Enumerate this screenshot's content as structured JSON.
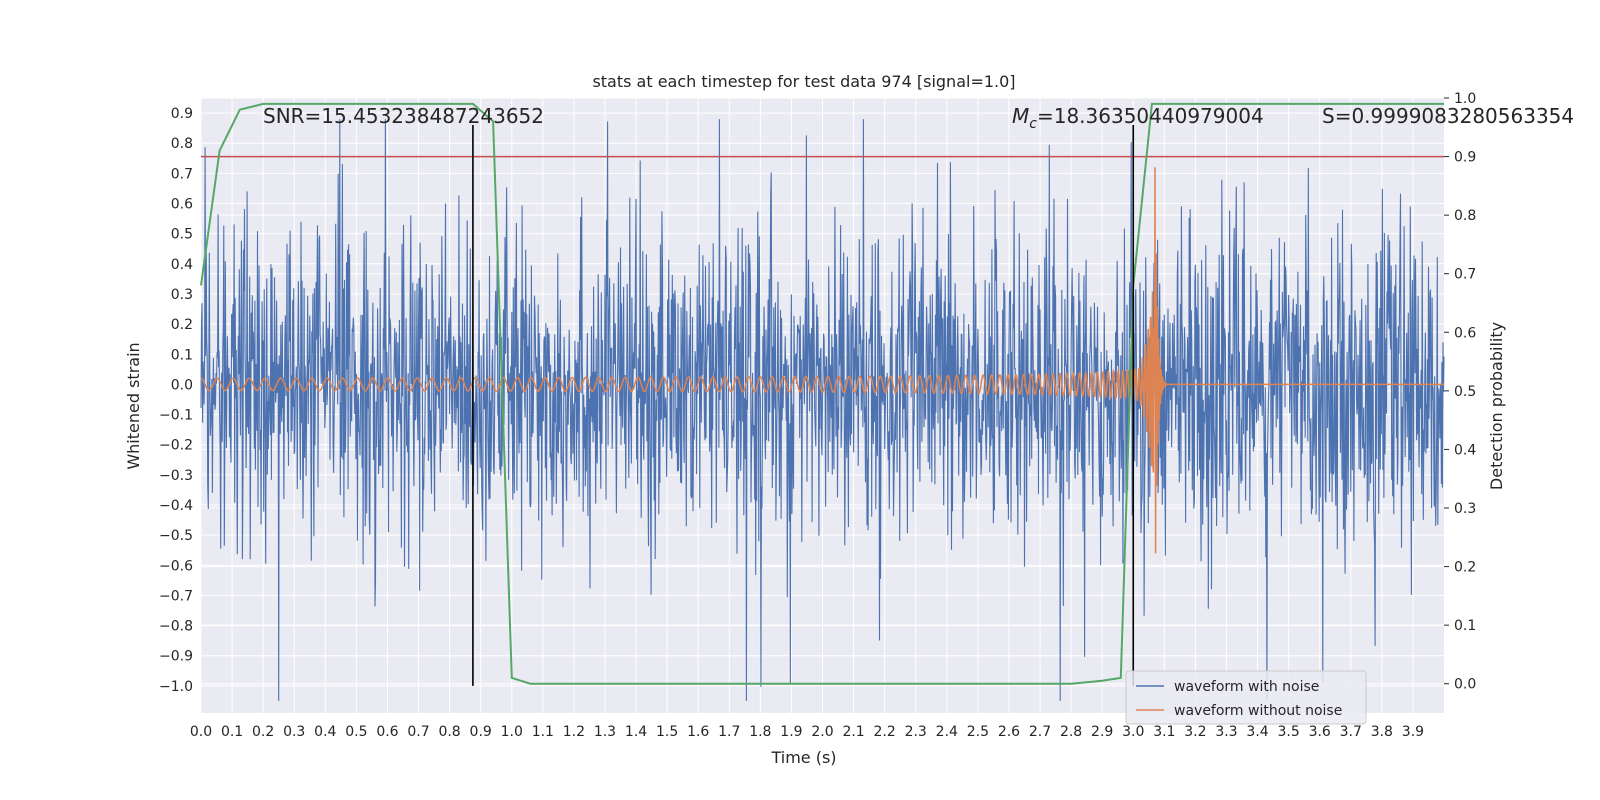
{
  "chart_data": {
    "type": "line",
    "title": "stats at each timestep for test data 974 [signal=1.0]",
    "xlabel": "Time (s)",
    "ylabel": "Whitened strain",
    "y2label": "Detection probability",
    "xlim": [
      0.0,
      4.0
    ],
    "ylim": [
      -1.09,
      0.95
    ],
    "y2lim": [
      -0.05,
      1.0
    ],
    "x_ticks": [
      "0.0",
      "0.1",
      "0.2",
      "0.3",
      "0.4",
      "0.5",
      "0.6",
      "0.7",
      "0.8",
      "0.9",
      "1.0",
      "1.1",
      "1.2",
      "1.3",
      "1.4",
      "1.5",
      "1.6",
      "1.7",
      "1.8",
      "1.9",
      "2.0",
      "2.1",
      "2.2",
      "2.3",
      "2.4",
      "2.5",
      "2.6",
      "2.7",
      "2.8",
      "2.9",
      "3.0",
      "3.1",
      "3.2",
      "3.3",
      "3.4",
      "3.5",
      "3.6",
      "3.7",
      "3.8",
      "3.9"
    ],
    "y_ticks": [
      "0.9",
      "0.8",
      "0.7",
      "0.6",
      "0.5",
      "0.4",
      "0.3",
      "0.2",
      "0.1",
      "0.0",
      "−0.1",
      "−0.2",
      "−0.3",
      "−0.4",
      "−0.5",
      "−0.6",
      "−0.7",
      "−0.8",
      "−0.9",
      "−1.0"
    ],
    "y_tick_values": [
      0.9,
      0.8,
      0.7,
      0.6,
      0.5,
      0.4,
      0.3,
      0.2,
      0.1,
      0.0,
      -0.1,
      -0.2,
      -0.3,
      -0.4,
      -0.5,
      -0.6,
      -0.7,
      -0.8,
      -0.9,
      -1.0
    ],
    "y2_ticks": [
      "1.0",
      "0.9",
      "0.8",
      "0.7",
      "0.6",
      "0.5",
      "0.4",
      "0.3",
      "0.2",
      "0.1",
      "0.0"
    ],
    "y2_tick_values": [
      1.0,
      0.9,
      0.8,
      0.7,
      0.6,
      0.5,
      0.4,
      0.3,
      0.2,
      0.1,
      0.0
    ],
    "grid": true,
    "legend_position": "bottom-right",
    "annotations": {
      "snr": "SNR=15.453238487243652",
      "mc_symbol": "M",
      "mc_sub": "c",
      "mc_value": "=18.36350440979004",
      "s": "S=0.9999083280563354"
    },
    "series": [
      {
        "name": "waveform with noise",
        "color": "#4c72b0",
        "style": "noise",
        "amplitude": 0.25,
        "x_range": [
          0.0,
          4.0
        ]
      },
      {
        "name": "waveform without noise",
        "color": "#dd8452",
        "style": "chirp",
        "merger_time": 3.07,
        "amplitude_start": 0.02,
        "amplitude_peak": 0.72
      },
      {
        "color": "#55a868",
        "axis": "y2",
        "x": [
          0.0,
          0.06,
          0.125,
          0.2,
          0.3,
          0.4,
          0.5,
          0.6,
          0.7,
          0.8,
          0.875,
          0.94,
          1.0,
          1.06,
          1.2,
          1.5,
          2.0,
          2.5,
          2.8,
          2.9,
          2.96,
          3.0,
          3.06,
          3.1,
          3.2,
          3.5,
          3.8,
          4.0
        ],
        "values": [
          0.68,
          0.91,
          0.98,
          0.99,
          0.99,
          0.99,
          0.99,
          0.99,
          0.99,
          0.99,
          0.99,
          0.96,
          0.01,
          0.0,
          0.0,
          0.0,
          0.0,
          0.0,
          0.0,
          0.005,
          0.01,
          0.68,
          0.99,
          0.99,
          0.99,
          0.99,
          0.99,
          0.99
        ]
      }
    ],
    "threshold": {
      "axis": "y2",
      "value": 0.9,
      "color": "#c44e52"
    },
    "vlines": [
      0.875,
      3.0
    ],
    "vline_ymin": -1.0,
    "colors": {
      "background": "#eaeaf2",
      "grid": "#ffffff",
      "noise": "#4c72b0",
      "chirp": "#dd8452",
      "probability": "#55a868",
      "threshold": "#c44e52",
      "vline": "#000000"
    }
  }
}
